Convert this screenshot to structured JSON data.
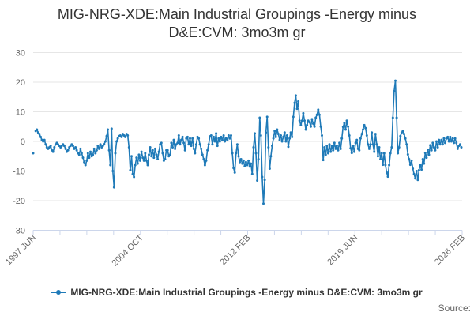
{
  "title": "MIG-NRG-XDE:Main Industrial Groupings -Energy minus D&E:CVM: 3mo3m gr",
  "legend": {
    "label": "MIG-NRG-XDE:Main Industrial Groupings -Energy minus D&E:CVM: 3mo3m gr"
  },
  "source_label": "Source:",
  "colors": {
    "series": "#1f7ab8",
    "grid": "#e6e6e6",
    "axis": "#ccd6eb",
    "tick_label": "#666666",
    "title": "#333333"
  },
  "chart_data": {
    "type": "line",
    "title": "MIG-NRG-XDE:Main Industrial Groupings -Energy minus D&E:CVM: 3mo3m gr",
    "frequency": "monthly",
    "x_start_label": "1997 JUN",
    "x_end_label": "2026 FEB",
    "x_tick_labels": [
      "1997 JUN",
      "2004 OCT",
      "2012 FEB",
      "2019 JUN",
      "2026 FEB"
    ],
    "y_ticks": [
      30,
      20,
      10,
      0,
      -10,
      -20,
      -30
    ],
    "ylim": [
      -30,
      30
    ],
    "grid": "horizontal",
    "legend_position": "bottom",
    "marker": "dot",
    "values": [
      -4,
      null,
      3.5,
      4,
      3,
      2.5,
      1.5,
      0.5,
      0,
      0.5,
      -1,
      -2,
      -2.5,
      -2,
      -1.5,
      -3,
      -3.5,
      -2,
      -1,
      -0.5,
      -1,
      -1.5,
      -2,
      -1.5,
      -1,
      -1.5,
      -2.5,
      -3.5,
      -3,
      -2,
      -1.5,
      -1,
      -1.5,
      -2.5,
      -2,
      -3,
      -4,
      -4.5,
      -2.5,
      -4,
      -5.5,
      -7,
      -8,
      -6.5,
      -4,
      -5.5,
      -3.5,
      -5,
      -4.5,
      -2.5,
      -4,
      -3,
      -1.5,
      -2.5,
      -1,
      -2,
      -1.5,
      -1,
      0,
      1.8,
      4,
      -3,
      -8,
      4.3,
      -10,
      -15.5,
      -4,
      0,
      1,
      1.8,
      2,
      1.5,
      2.5,
      2,
      1.5,
      2.5,
      2,
      -2,
      -9.7,
      -5,
      -11,
      -12,
      -8,
      -5.5,
      -7.5,
      -4.5,
      -6.5,
      -3.5,
      -5.5,
      -6.5,
      -4,
      -6.5,
      -8,
      -4.5,
      -2,
      -5,
      -3,
      -5.5,
      -2.5,
      -4.5,
      -6,
      -3.5,
      -1,
      -0.5,
      -4,
      -6.5,
      -6,
      -3,
      -3,
      -5,
      -4.5,
      -0.5,
      -2,
      0.5,
      -2.5,
      -1,
      -0.5,
      2,
      -1,
      0.5,
      1.5,
      -0.5,
      -3,
      1,
      1.5,
      -1,
      1,
      -1.5,
      1,
      -2.5,
      -4,
      -1,
      1.5,
      1,
      -1,
      -2.5,
      -4.5,
      -6,
      -8,
      -6.5,
      -3,
      -1,
      1.7,
      2,
      -1,
      1.5,
      0,
      2.7,
      -1.5,
      1,
      0,
      1.5,
      0.5,
      2,
      0,
      1,
      0.5,
      2,
      1,
      2,
      -4,
      -9,
      -10.5,
      -4,
      -1,
      -5,
      -7,
      -6,
      -7.5,
      -6.5,
      -8.4,
      -7,
      -8,
      -6.5,
      -8.5,
      -7.5,
      -11,
      -2,
      2.7,
      -4,
      -13.2,
      -6,
      8,
      2,
      -12,
      -21,
      -13,
      3,
      8.3,
      -2,
      -9.2,
      -5,
      -1.5,
      1,
      3.5,
      1.5,
      4,
      2.5,
      0.5,
      2,
      0,
      1.5,
      3,
      0,
      2,
      -1.8,
      1,
      3,
      1.5,
      8.3,
      13,
      15.5,
      11,
      13.5,
      7,
      5.5,
      7,
      9.5,
      7,
      4,
      5.5,
      7,
      6.5,
      5,
      7.5,
      6,
      5,
      8,
      9,
      10.7,
      9,
      5,
      2,
      -6.3,
      -2,
      -4.5,
      -1.5,
      -4,
      -1,
      -3.5,
      -1.5,
      -3,
      -0.5,
      -2.5,
      -1.5,
      -3,
      -0.5,
      -2.5,
      1,
      4.9,
      6.2,
      4,
      7,
      5,
      2,
      -2.3,
      -3.9,
      -1.5,
      -3.5,
      -0.5,
      0.5,
      -2.5,
      -3,
      1,
      2.5,
      4,
      5.5,
      4.5,
      2,
      -1,
      -2.5,
      -1,
      3,
      -1,
      -3.5,
      2.5,
      -1,
      -5,
      -2,
      -6,
      -4,
      -7.9,
      -4,
      -8,
      -10.5,
      -11.9,
      -8,
      -4,
      -2,
      8,
      17,
      20.5,
      8,
      -4,
      -2,
      1.8,
      3,
      3.5,
      2.5,
      1,
      -1,
      -4.4,
      -6,
      -7.9,
      -6.5,
      -9.2,
      -11,
      -12.5,
      -10,
      -13,
      -9.7,
      -8,
      -9.5,
      -6,
      -7.5,
      -3.9,
      -5.5,
      -2.8,
      -4.5,
      -1.3,
      -3,
      -0.5,
      -2,
      -3,
      0,
      -2,
      0.5,
      -1,
      0.5,
      -1,
      1,
      -0.5,
      1,
      1.5,
      0,
      1.5,
      0,
      1,
      -0.5,
      1,
      -0.5,
      -2.5,
      -1.5,
      -1,
      -2
    ]
  }
}
